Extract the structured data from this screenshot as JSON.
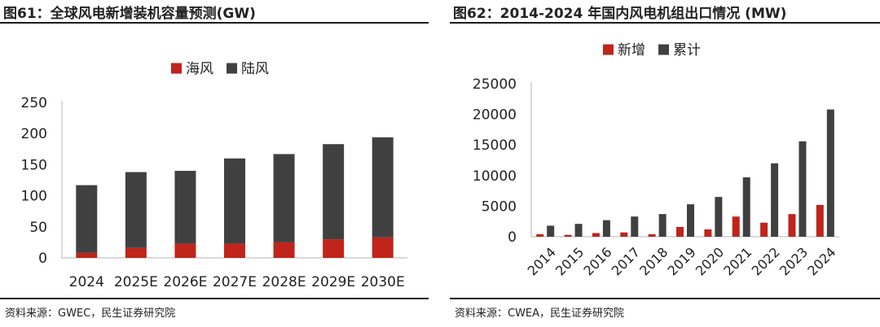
{
  "chart_data": [
    {
      "type": "bar",
      "stacked": true,
      "title": "图61：全球风电新增装机容量预测(GW)",
      "source": "资料来源：GWEC，民生证券研究院",
      "categories": [
        "2024",
        "2025E",
        "2026E",
        "2027E",
        "2028E",
        "2029E",
        "2030E"
      ],
      "series": [
        {
          "name": "海风",
          "color": "#c0241b",
          "values": [
            8,
            16,
            23,
            23,
            25,
            30,
            33
          ]
        },
        {
          "name": "陆风",
          "color": "#404040",
          "values": [
            109,
            122,
            117,
            137,
            142,
            153,
            161
          ]
        }
      ],
      "ylim": [
        0,
        250
      ],
      "yticks": [
        0,
        50,
        100,
        150,
        200,
        250
      ],
      "legend": "top-center",
      "grid": false
    },
    {
      "type": "bar",
      "stacked": false,
      "title": "图62：2014-2024 年国内风电机组出口情况 (MW)",
      "source": "资料来源：CWEA，民生证券研究院",
      "categories": [
        "2014",
        "2015",
        "2016",
        "2017",
        "2018",
        "2019",
        "2020",
        "2021",
        "2022",
        "2023",
        "2024"
      ],
      "series": [
        {
          "name": "新增",
          "color": "#c0241b",
          "values": [
            400,
            300,
            600,
            700,
            400,
            1600,
            1200,
            3300,
            2300,
            3700,
            5200
          ]
        },
        {
          "name": "累计",
          "color": "#404040",
          "values": [
            1800,
            2100,
            2700,
            3300,
            3700,
            5300,
            6500,
            9700,
            12000,
            15600,
            20800
          ]
        }
      ],
      "ylim": [
        0,
        25000
      ],
      "yticks": [
        0,
        5000,
        10000,
        15000,
        20000,
        25000
      ],
      "legend": "top-center",
      "grid": false
    }
  ]
}
